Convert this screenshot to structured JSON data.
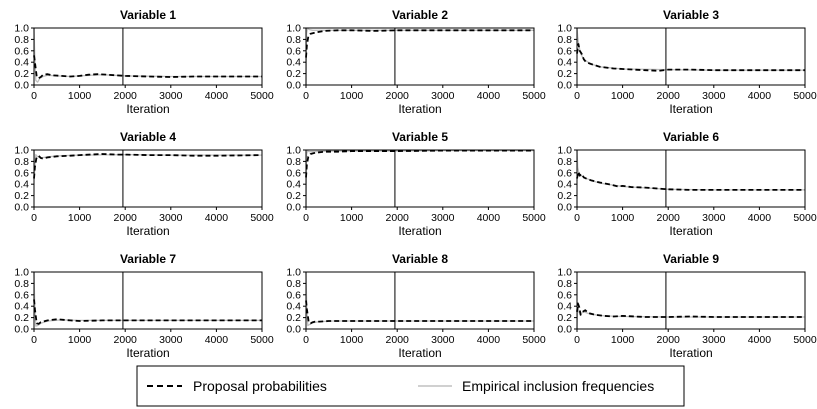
{
  "chart_data": [
    {
      "type": "line",
      "title": "Variable 1",
      "xlabel": "Iteration",
      "ylabel": "",
      "xlim": [
        0,
        5000
      ],
      "ylim": [
        0,
        1
      ],
      "x_ticks": [
        0,
        1000,
        2000,
        3000,
        4000,
        5000
      ],
      "y_ticks": [
        0.0,
        0.2,
        0.4,
        0.6,
        0.8,
        1.0
      ],
      "vline_x": 1950,
      "series": [
        {
          "name": "Proposal probabilities",
          "x": [
            0,
            20,
            60,
            100,
            150,
            200,
            300,
            400,
            600,
            800,
            1000,
            1200,
            1400,
            1600,
            1800,
            2000,
            2500,
            3000,
            3500,
            4000,
            4500,
            5000
          ],
          "values": [
            0.52,
            0.4,
            0.15,
            0.12,
            0.14,
            0.18,
            0.19,
            0.17,
            0.16,
            0.15,
            0.16,
            0.18,
            0.19,
            0.18,
            0.17,
            0.16,
            0.15,
            0.14,
            0.15,
            0.15,
            0.15,
            0.15
          ]
        },
        {
          "name": "Empirical inclusion frequencies",
          "x": [
            0,
            15,
            40,
            80,
            130,
            200,
            300,
            500,
            800,
            1000,
            1500,
            2000,
            3000,
            4000,
            5000
          ],
          "values": [
            1.0,
            0.55,
            0.08,
            0.05,
            0.12,
            0.15,
            0.17,
            0.16,
            0.15,
            0.16,
            0.18,
            0.16,
            0.15,
            0.15,
            0.15
          ]
        }
      ]
    },
    {
      "type": "line",
      "title": "Variable 2",
      "xlabel": "Iteration",
      "ylabel": "",
      "xlim": [
        0,
        5000
      ],
      "ylim": [
        0,
        1
      ],
      "x_ticks": [
        0,
        1000,
        2000,
        3000,
        4000,
        5000
      ],
      "y_ticks": [
        0.0,
        0.2,
        0.4,
        0.6,
        0.8,
        1.0
      ],
      "vline_x": 1950,
      "series": [
        {
          "name": "Proposal probabilities",
          "x": [
            0,
            20,
            50,
            100,
            200,
            400,
            700,
            1000,
            1500,
            2000,
            2500,
            3000,
            4000,
            5000
          ],
          "values": [
            0.48,
            0.7,
            0.85,
            0.9,
            0.92,
            0.95,
            0.96,
            0.96,
            0.95,
            0.96,
            0.96,
            0.96,
            0.96,
            0.96
          ]
        },
        {
          "name": "Empirical inclusion frequencies",
          "x": [
            0,
            10,
            30,
            80,
            150,
            300,
            600,
            1000,
            2000,
            3000,
            5000
          ],
          "values": [
            0.0,
            0.9,
            0.99,
            0.97,
            0.96,
            0.96,
            0.96,
            0.96,
            0.96,
            0.96,
            0.96
          ]
        }
      ]
    },
    {
      "type": "line",
      "title": "Variable 3",
      "xlabel": "Iteration",
      "ylabel": "",
      "xlim": [
        0,
        5000
      ],
      "ylim": [
        0,
        1
      ],
      "x_ticks": [
        0,
        1000,
        2000,
        3000,
        4000,
        5000
      ],
      "y_ticks": [
        0.0,
        0.2,
        0.4,
        0.6,
        0.8,
        1.0
      ],
      "vline_x": 1950,
      "series": [
        {
          "name": "Proposal probabilities",
          "x": [
            0,
            30,
            60,
            100,
            150,
            200,
            300,
            500,
            800,
            1000,
            1500,
            1800,
            2000,
            2500,
            3000,
            4000,
            5000
          ],
          "values": [
            0.55,
            0.72,
            0.6,
            0.55,
            0.45,
            0.4,
            0.37,
            0.32,
            0.29,
            0.28,
            0.26,
            0.25,
            0.27,
            0.27,
            0.26,
            0.26,
            0.26
          ]
        },
        {
          "name": "Empirical inclusion frequencies",
          "x": [
            0,
            15,
            40,
            80,
            150,
            300,
            500,
            1000,
            2000,
            3000,
            5000
          ],
          "values": [
            1.0,
            0.85,
            0.7,
            0.55,
            0.45,
            0.37,
            0.32,
            0.28,
            0.27,
            0.26,
            0.26
          ]
        }
      ]
    },
    {
      "type": "line",
      "title": "Variable 4",
      "xlabel": "Iteration",
      "ylabel": "",
      "xlim": [
        0,
        5000
      ],
      "ylim": [
        0,
        1
      ],
      "x_ticks": [
        0,
        1000,
        2000,
        3000,
        4000,
        5000
      ],
      "y_ticks": [
        0.0,
        0.2,
        0.4,
        0.6,
        0.8,
        1.0
      ],
      "vline_x": 1950,
      "series": [
        {
          "name": "Proposal probabilities",
          "x": [
            0,
            20,
            50,
            100,
            150,
            200,
            300,
            500,
            800,
            1000,
            1500,
            1800,
            2000,
            2500,
            3000,
            3500,
            4000,
            5000
          ],
          "values": [
            0.5,
            0.7,
            0.85,
            0.9,
            0.86,
            0.85,
            0.87,
            0.89,
            0.9,
            0.91,
            0.93,
            0.92,
            0.92,
            0.91,
            0.91,
            0.9,
            0.9,
            0.91
          ]
        },
        {
          "name": "Empirical inclusion frequencies",
          "x": [
            0,
            10,
            40,
            80,
            150,
            300,
            600,
            1000,
            2000,
            3000,
            5000
          ],
          "values": [
            1.0,
            0.6,
            0.92,
            0.88,
            0.86,
            0.88,
            0.9,
            0.91,
            0.92,
            0.91,
            0.91
          ]
        }
      ]
    },
    {
      "type": "line",
      "title": "Variable 5",
      "xlabel": "Iteration",
      "ylabel": "",
      "xlim": [
        0,
        5000
      ],
      "ylim": [
        0,
        1
      ],
      "x_ticks": [
        0,
        1000,
        2000,
        3000,
        4000,
        5000
      ],
      "y_ticks": [
        0.0,
        0.2,
        0.4,
        0.6,
        0.8,
        1.0
      ],
      "vline_x": 1950,
      "series": [
        {
          "name": "Proposal probabilities",
          "x": [
            0,
            20,
            50,
            100,
            200,
            400,
            700,
            1000,
            1500,
            2000,
            3000,
            4000,
            5000
          ],
          "values": [
            0.52,
            0.75,
            0.88,
            0.93,
            0.95,
            0.97,
            0.97,
            0.98,
            0.98,
            0.98,
            0.99,
            0.99,
            0.99
          ]
        },
        {
          "name": "Empirical inclusion frequencies",
          "x": [
            0,
            10,
            30,
            80,
            200,
            500,
            1000,
            2000,
            3000,
            5000
          ],
          "values": [
            0.0,
            0.92,
            0.98,
            0.97,
            0.97,
            0.98,
            0.98,
            0.98,
            0.99,
            0.99
          ]
        }
      ]
    },
    {
      "type": "line",
      "title": "Variable 6",
      "xlabel": "Iteration",
      "ylabel": "",
      "xlim": [
        0,
        5000
      ],
      "ylim": [
        0,
        1
      ],
      "x_ticks": [
        0,
        1000,
        2000,
        3000,
        4000,
        5000
      ],
      "y_ticks": [
        0.0,
        0.2,
        0.4,
        0.6,
        0.8,
        1.0
      ],
      "vline_x": 1950,
      "series": [
        {
          "name": "Proposal probabilities",
          "x": [
            0,
            30,
            60,
            100,
            150,
            200,
            300,
            500,
            700,
            900,
            1000,
            1200,
            1500,
            2000,
            2500,
            3000,
            4000,
            5000
          ],
          "values": [
            0.5,
            0.62,
            0.55,
            0.58,
            0.52,
            0.5,
            0.47,
            0.43,
            0.4,
            0.36,
            0.37,
            0.35,
            0.34,
            0.31,
            0.3,
            0.3,
            0.3,
            0.3
          ]
        },
        {
          "name": "Empirical inclusion frequencies",
          "x": [
            0,
            15,
            40,
            80,
            150,
            300,
            500,
            1000,
            2000,
            3000,
            5000
          ],
          "values": [
            1.0,
            0.7,
            0.6,
            0.56,
            0.52,
            0.47,
            0.42,
            0.36,
            0.31,
            0.3,
            0.3
          ]
        }
      ]
    },
    {
      "type": "line",
      "title": "Variable 7",
      "xlabel": "Iteration",
      "ylabel": "",
      "xlim": [
        0,
        5000
      ],
      "ylim": [
        0,
        1
      ],
      "x_ticks": [
        0,
        1000,
        2000,
        3000,
        4000,
        5000
      ],
      "y_ticks": [
        0.0,
        0.2,
        0.4,
        0.6,
        0.8,
        1.0
      ],
      "vline_x": 1950,
      "series": [
        {
          "name": "Proposal probabilities",
          "x": [
            0,
            20,
            60,
            100,
            150,
            200,
            300,
            500,
            800,
            1000,
            1500,
            2000,
            2500,
            3000,
            4000,
            5000
          ],
          "values": [
            0.52,
            0.35,
            0.1,
            0.09,
            0.12,
            0.13,
            0.15,
            0.17,
            0.15,
            0.14,
            0.15,
            0.15,
            0.15,
            0.15,
            0.15,
            0.15
          ]
        },
        {
          "name": "Empirical inclusion frequencies",
          "x": [
            0,
            15,
            40,
            80,
            150,
            300,
            600,
            1000,
            2000,
            3000,
            5000
          ],
          "values": [
            1.0,
            0.45,
            0.05,
            0.06,
            0.1,
            0.14,
            0.16,
            0.15,
            0.15,
            0.15,
            0.15
          ]
        }
      ]
    },
    {
      "type": "line",
      "title": "Variable 8",
      "xlabel": "Iteration",
      "ylabel": "",
      "xlim": [
        0,
        5000
      ],
      "ylim": [
        0,
        1
      ],
      "x_ticks": [
        0,
        1000,
        2000,
        3000,
        4000,
        5000
      ],
      "y_ticks": [
        0.0,
        0.2,
        0.4,
        0.6,
        0.8,
        1.0
      ],
      "vline_x": 1950,
      "series": [
        {
          "name": "Proposal probabilities",
          "x": [
            0,
            20,
            60,
            100,
            150,
            200,
            300,
            500,
            800,
            1000,
            1500,
            2000,
            3000,
            4000,
            5000
          ],
          "values": [
            0.5,
            0.35,
            0.12,
            0.1,
            0.12,
            0.13,
            0.13,
            0.14,
            0.14,
            0.14,
            0.14,
            0.14,
            0.14,
            0.14,
            0.14
          ]
        },
        {
          "name": "Empirical inclusion frequencies",
          "x": [
            0,
            15,
            40,
            80,
            150,
            300,
            600,
            1000,
            2000,
            3000,
            5000
          ],
          "values": [
            1.0,
            0.4,
            0.06,
            0.08,
            0.11,
            0.13,
            0.14,
            0.14,
            0.14,
            0.14,
            0.14
          ]
        }
      ]
    },
    {
      "type": "line",
      "title": "Variable 9",
      "xlabel": "Iteration",
      "ylabel": "",
      "xlim": [
        0,
        5000
      ],
      "ylim": [
        0,
        1
      ],
      "x_ticks": [
        0,
        1000,
        2000,
        3000,
        4000,
        5000
      ],
      "y_ticks": [
        0.0,
        0.2,
        0.4,
        0.6,
        0.8,
        1.0
      ],
      "vline_x": 1950,
      "series": [
        {
          "name": "Proposal probabilities",
          "x": [
            0,
            20,
            50,
            80,
            120,
            180,
            250,
            400,
            600,
            800,
            1000,
            1500,
            2000,
            2500,
            3000,
            4000,
            5000
          ],
          "values": [
            0.3,
            0.45,
            0.38,
            0.25,
            0.3,
            0.33,
            0.28,
            0.25,
            0.23,
            0.22,
            0.23,
            0.21,
            0.21,
            0.22,
            0.21,
            0.21,
            0.21
          ]
        },
        {
          "name": "Empirical inclusion frequencies",
          "x": [
            0,
            15,
            40,
            80,
            150,
            300,
            600,
            1000,
            2000,
            3000,
            5000
          ],
          "values": [
            0.0,
            0.45,
            0.3,
            0.27,
            0.3,
            0.26,
            0.23,
            0.22,
            0.21,
            0.21,
            0.21
          ]
        }
      ]
    }
  ],
  "legend": {
    "proposal_label": "Proposal probabilities",
    "empirical_label": "Empirical inclusion frequencies"
  },
  "colors": {
    "proposal": "#000000",
    "empirical": "#c0c0c0",
    "axis": "#000000"
  }
}
